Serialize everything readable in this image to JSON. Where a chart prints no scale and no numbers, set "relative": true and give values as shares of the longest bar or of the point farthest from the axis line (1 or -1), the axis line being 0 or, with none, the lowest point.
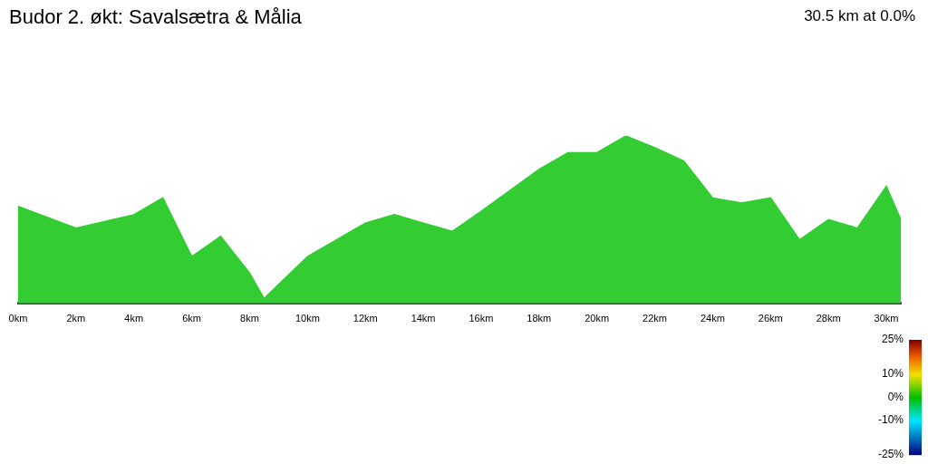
{
  "chart_data": {
    "type": "area",
    "title": "Budor 2. økt: Savalsætra & Målia",
    "subtitle": "30.5 km at 0.0%",
    "relative": true,
    "x": [
      0,
      2,
      4,
      5,
      6,
      7,
      8,
      8.5,
      10,
      12,
      13,
      14,
      15,
      16,
      18,
      19,
      20,
      21,
      22,
      23,
      24,
      25,
      26,
      27,
      28,
      29,
      30,
      30.5
    ],
    "values": [
      0.58,
      0.45,
      0.53,
      0.63,
      0.28,
      0.4,
      0.18,
      0.03,
      0.28,
      0.48,
      0.53,
      0.48,
      0.43,
      0.55,
      0.8,
      0.9,
      0.9,
      1,
      0.93,
      0.85,
      0.63,
      0.6,
      0.63,
      0.38,
      0.5,
      0.45,
      0.7,
      0.5
    ],
    "color": "#33cc33",
    "xlim": [
      0,
      30.5
    ],
    "xticks": [
      {
        "value": 0,
        "label": "0km"
      },
      {
        "value": 2,
        "label": "2km"
      },
      {
        "value": 4,
        "label": "4km"
      },
      {
        "value": 6,
        "label": "6km"
      },
      {
        "value": 8,
        "label": "8km"
      },
      {
        "value": 10,
        "label": "10km"
      },
      {
        "value": 12,
        "label": "12km"
      },
      {
        "value": 14,
        "label": "14km"
      },
      {
        "value": 16,
        "label": "16km"
      },
      {
        "value": 18,
        "label": "18km"
      },
      {
        "value": 20,
        "label": "20km"
      },
      {
        "value": 22,
        "label": "22km"
      },
      {
        "value": 24,
        "label": "24km"
      },
      {
        "value": 26,
        "label": "26km"
      },
      {
        "value": 28,
        "label": "28km"
      },
      {
        "value": 30,
        "label": "30km"
      }
    ],
    "clim": [
      -25,
      25
    ],
    "cticks": [
      {
        "value": 25,
        "label": "25%"
      },
      {
        "value": 10,
        "label": "10%"
      },
      {
        "value": 0,
        "label": "0%"
      },
      {
        "value": -10,
        "label": "-10%"
      },
      {
        "value": -25,
        "label": "-25%"
      }
    ],
    "grid": false,
    "legend": false
  }
}
